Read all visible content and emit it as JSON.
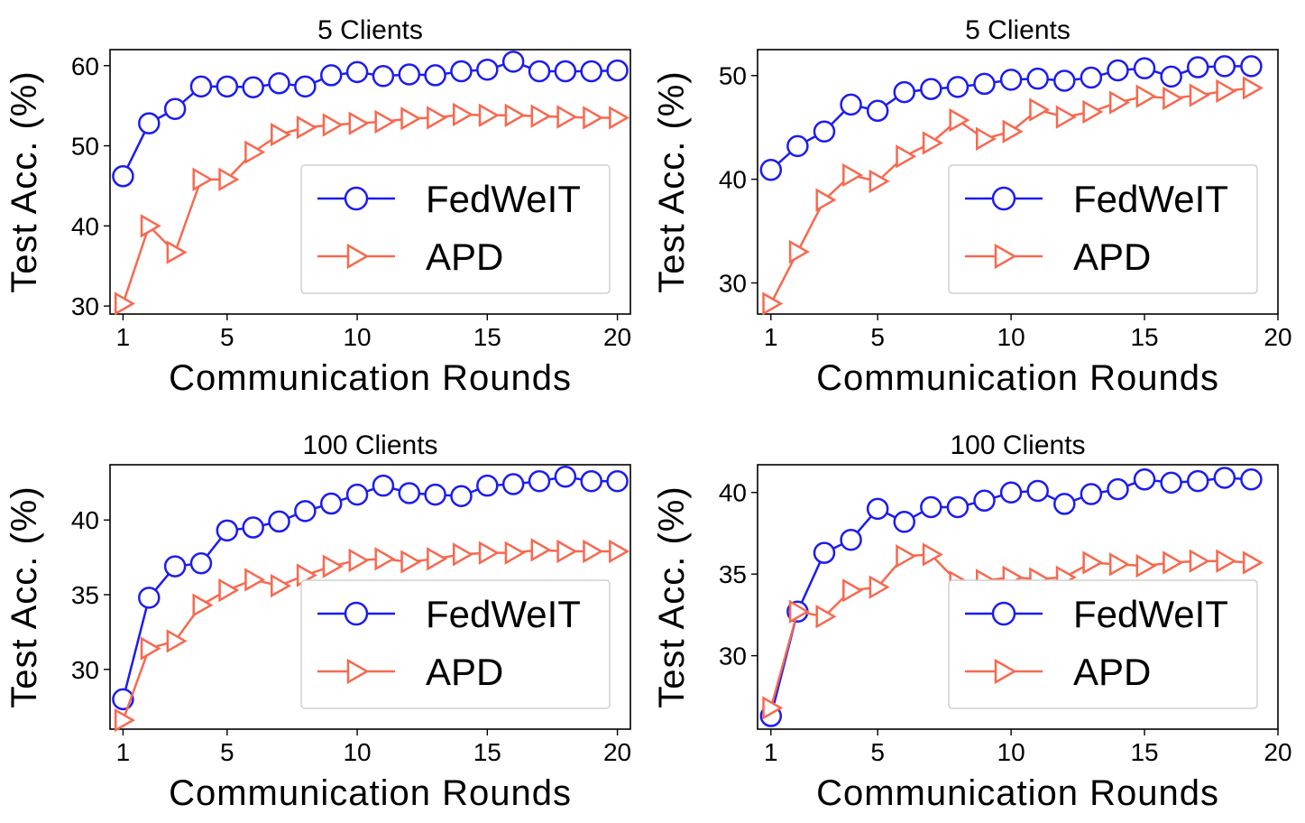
{
  "chart_data": [
    {
      "type": "line",
      "title": "5 Clients",
      "xlabel": "Communication Rounds",
      "ylabel": "Test Acc. (%)",
      "xlim": [
        0.5,
        20.5
      ],
      "ylim": [
        29,
        62
      ],
      "xticks": [
        1,
        5,
        10,
        15,
        20
      ],
      "yticks": [
        30,
        40,
        50,
        60
      ],
      "legend": "lower-right",
      "grid": false,
      "series": [
        {
          "name": "FedWeIT",
          "color": "#1c1cf0",
          "marker": "circle",
          "x": [
            1,
            2,
            3,
            4,
            5,
            6,
            7,
            8,
            9,
            10,
            11,
            12,
            13,
            14,
            15,
            16,
            17,
            18,
            19,
            20
          ],
          "y": [
            46.2,
            52.8,
            54.6,
            57.4,
            57.4,
            57.3,
            57.8,
            57.4,
            58.8,
            59.2,
            58.7,
            58.9,
            58.8,
            59.3,
            59.5,
            60.5,
            59.3,
            59.3,
            59.3,
            59.4
          ]
        },
        {
          "name": "APD",
          "color": "#f7694f",
          "marker": "triangle-right",
          "x": [
            1,
            2,
            3,
            4,
            5,
            6,
            7,
            8,
            9,
            10,
            11,
            12,
            13,
            14,
            15,
            16,
            17,
            18,
            19,
            20
          ],
          "y": [
            30.3,
            40.0,
            36.7,
            45.8,
            45.8,
            49.2,
            51.4,
            52.3,
            52.6,
            52.8,
            53.0,
            53.4,
            53.5,
            53.9,
            53.8,
            53.8,
            53.7,
            53.6,
            53.5,
            53.5
          ]
        }
      ]
    },
    {
      "type": "line",
      "title": "5 Clients",
      "xlabel": "Communication Rounds",
      "ylabel": "Test Acc. (%)",
      "xlim": [
        0.5,
        20
      ],
      "ylim": [
        27,
        52.5
      ],
      "xticks": [
        1,
        5,
        10,
        15,
        20
      ],
      "yticks": [
        30,
        40,
        50
      ],
      "legend": "lower-right",
      "grid": false,
      "series": [
        {
          "name": "FedWeIT",
          "color": "#1c1cf0",
          "marker": "circle",
          "x": [
            1,
            2,
            3,
            4,
            5,
            6,
            7,
            8,
            9,
            10,
            11,
            12,
            13,
            14,
            15,
            16,
            17,
            18,
            19
          ],
          "y": [
            40.9,
            43.2,
            44.6,
            47.2,
            46.6,
            48.4,
            48.7,
            48.9,
            49.2,
            49.6,
            49.7,
            49.5,
            49.8,
            50.5,
            50.7,
            49.9,
            50.8,
            50.9,
            50.9
          ]
        },
        {
          "name": "APD",
          "color": "#f7694f",
          "marker": "triangle-right",
          "x": [
            1,
            2,
            3,
            4,
            5,
            6,
            7,
            8,
            9,
            10,
            11,
            12,
            13,
            14,
            15,
            16,
            17,
            18,
            19
          ],
          "y": [
            28.0,
            33.0,
            38.0,
            40.4,
            39.8,
            42.2,
            43.5,
            45.7,
            43.9,
            44.6,
            46.7,
            46.0,
            46.5,
            47.4,
            48.0,
            47.8,
            48.1,
            48.5,
            48.8
          ]
        }
      ]
    },
    {
      "type": "line",
      "title": "100 Clients",
      "xlabel": "Communication Rounds",
      "ylabel": "Test Acc. (%)",
      "xlim": [
        0.5,
        20.5
      ],
      "ylim": [
        26,
        43.7
      ],
      "xticks": [
        1,
        5,
        10,
        15,
        20
      ],
      "yticks": [
        30,
        35,
        40
      ],
      "legend": "lower-right",
      "grid": false,
      "series": [
        {
          "name": "FedWeIT",
          "color": "#1c1cf0",
          "marker": "circle",
          "x": [
            1,
            2,
            3,
            4,
            5,
            6,
            7,
            8,
            9,
            10,
            11,
            12,
            13,
            14,
            15,
            16,
            17,
            18,
            19,
            20
          ],
          "y": [
            28.0,
            34.8,
            36.9,
            37.1,
            39.3,
            39.5,
            39.9,
            40.6,
            41.1,
            41.7,
            42.3,
            41.8,
            41.7,
            41.6,
            42.3,
            42.4,
            42.6,
            42.9,
            42.6,
            42.6
          ]
        },
        {
          "name": "APD",
          "color": "#f7694f",
          "marker": "triangle-right",
          "x": [
            1,
            2,
            3,
            4,
            5,
            6,
            7,
            8,
            9,
            10,
            11,
            12,
            13,
            14,
            15,
            16,
            17,
            18,
            19,
            20
          ],
          "y": [
            26.6,
            31.4,
            31.9,
            34.3,
            35.3,
            36.0,
            35.6,
            36.3,
            36.9,
            37.3,
            37.4,
            37.2,
            37.4,
            37.7,
            37.8,
            37.8,
            38.0,
            37.9,
            37.9,
            37.9
          ]
        }
      ]
    },
    {
      "type": "line",
      "title": "100 Clients",
      "xlabel": "Communication Rounds",
      "ylabel": "Test Acc. (%)",
      "xlim": [
        0.5,
        20
      ],
      "ylim": [
        25.5,
        41.7
      ],
      "xticks": [
        1,
        5,
        10,
        15,
        20
      ],
      "yticks": [
        30,
        35,
        40
      ],
      "legend": "lower-right",
      "grid": false,
      "series": [
        {
          "name": "FedWeIT",
          "color": "#1c1cf0",
          "marker": "circle",
          "x": [
            1,
            2,
            3,
            4,
            5,
            6,
            7,
            8,
            9,
            10,
            11,
            12,
            13,
            14,
            15,
            16,
            17,
            18,
            19
          ],
          "y": [
            26.3,
            32.7,
            36.3,
            37.1,
            39.0,
            38.2,
            39.1,
            39.1,
            39.5,
            40.0,
            40.1,
            39.3,
            39.9,
            40.2,
            40.8,
            40.6,
            40.7,
            40.9,
            40.8
          ]
        },
        {
          "name": "APD",
          "color": "#f7694f",
          "marker": "triangle-right",
          "x": [
            1,
            2,
            3,
            4,
            5,
            6,
            7,
            8,
            9,
            10,
            11,
            12,
            13,
            14,
            15,
            16,
            17,
            18,
            19
          ],
          "y": [
            26.8,
            32.7,
            32.4,
            34.0,
            34.2,
            36.1,
            36.2,
            34.5,
            34.6,
            34.8,
            34.7,
            34.8,
            35.7,
            35.6,
            35.5,
            35.7,
            35.8,
            35.8,
            35.7
          ]
        }
      ]
    }
  ]
}
